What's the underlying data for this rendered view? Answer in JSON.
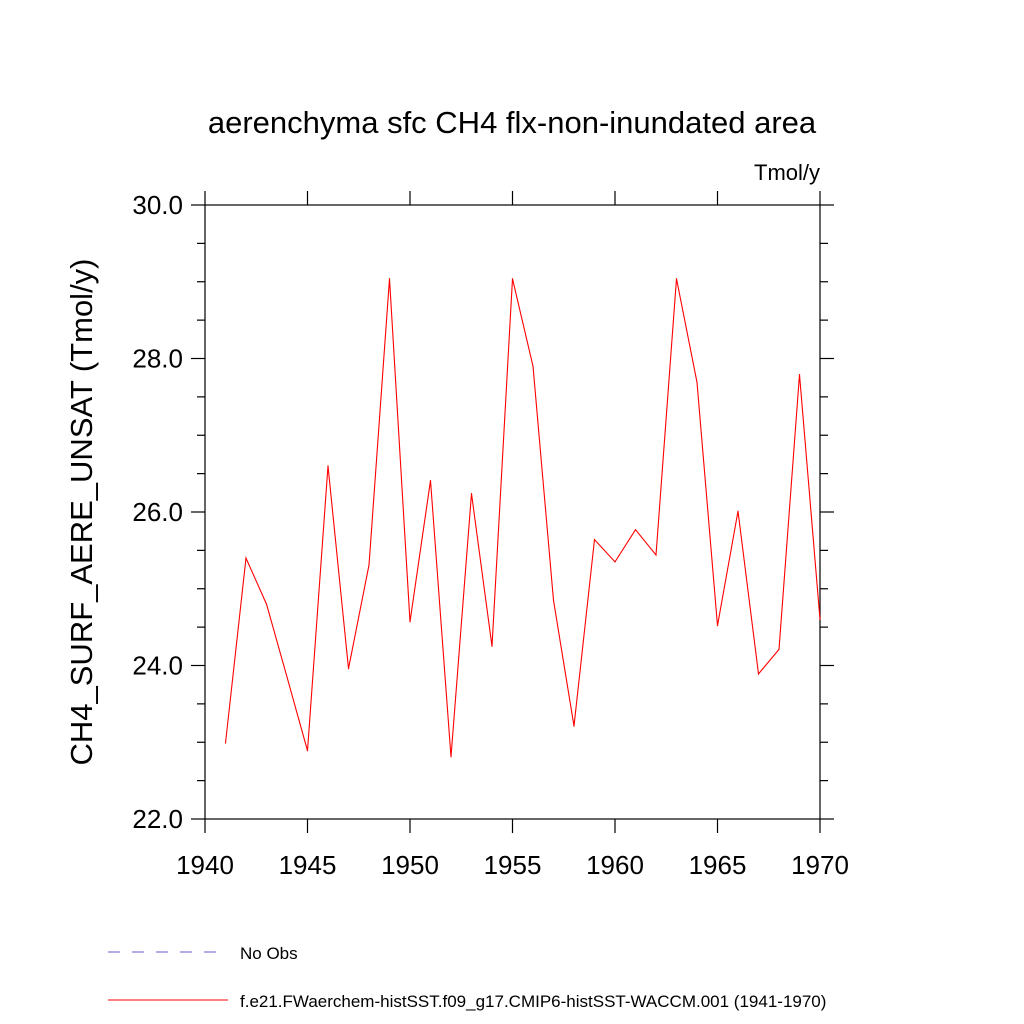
{
  "chart_data": {
    "type": "line",
    "title": "aerenchyma sfc CH4 flx-non-inundated area",
    "units_label": "Tmol/y",
    "ylabel": "CH4_SURF_AERE_UNSAT  (Tmol/y)",
    "xlabel": "",
    "xlim": [
      1940,
      1970
    ],
    "ylim": [
      22.0,
      30.0
    ],
    "x_ticks": [
      1940,
      1945,
      1950,
      1955,
      1960,
      1965,
      1970
    ],
    "x_tick_labels": [
      "1940",
      "1945",
      "1950",
      "1955",
      "1960",
      "1965",
      "1970"
    ],
    "y_ticks": [
      22.0,
      24.0,
      26.0,
      28.0,
      30.0
    ],
    "y_tick_labels": [
      "22.0",
      "24.0",
      "26.0",
      "28.0",
      "30.0"
    ],
    "grid": false,
    "legend_position": "bottom-left",
    "series": [
      {
        "name": "No Obs",
        "color": "#6a5acd",
        "dash": "dashed",
        "x": [],
        "values": []
      },
      {
        "name": "f.e21.FWaerchem-histSST.f09_g17.CMIP6-histSST-WACCM.001 (1941-1970)",
        "color": "#ff0000",
        "dash": "solid",
        "x": [
          1941,
          1942,
          1943,
          1944,
          1945,
          1946,
          1947,
          1948,
          1949,
          1950,
          1951,
          1952,
          1953,
          1954,
          1955,
          1956,
          1957,
          1958,
          1959,
          1960,
          1961,
          1962,
          1963,
          1964,
          1965,
          1966,
          1967,
          1968,
          1969,
          1970
        ],
        "values": [
          22.99,
          25.4,
          24.8,
          23.85,
          22.89,
          26.6,
          23.96,
          25.31,
          29.04,
          24.57,
          26.41,
          22.81,
          26.24,
          24.25,
          29.04,
          27.9,
          24.85,
          23.21,
          25.64,
          25.35,
          25.77,
          25.44,
          29.04,
          27.69,
          24.52,
          26.01,
          23.89,
          24.21,
          27.79,
          24.6
        ]
      }
    ]
  }
}
